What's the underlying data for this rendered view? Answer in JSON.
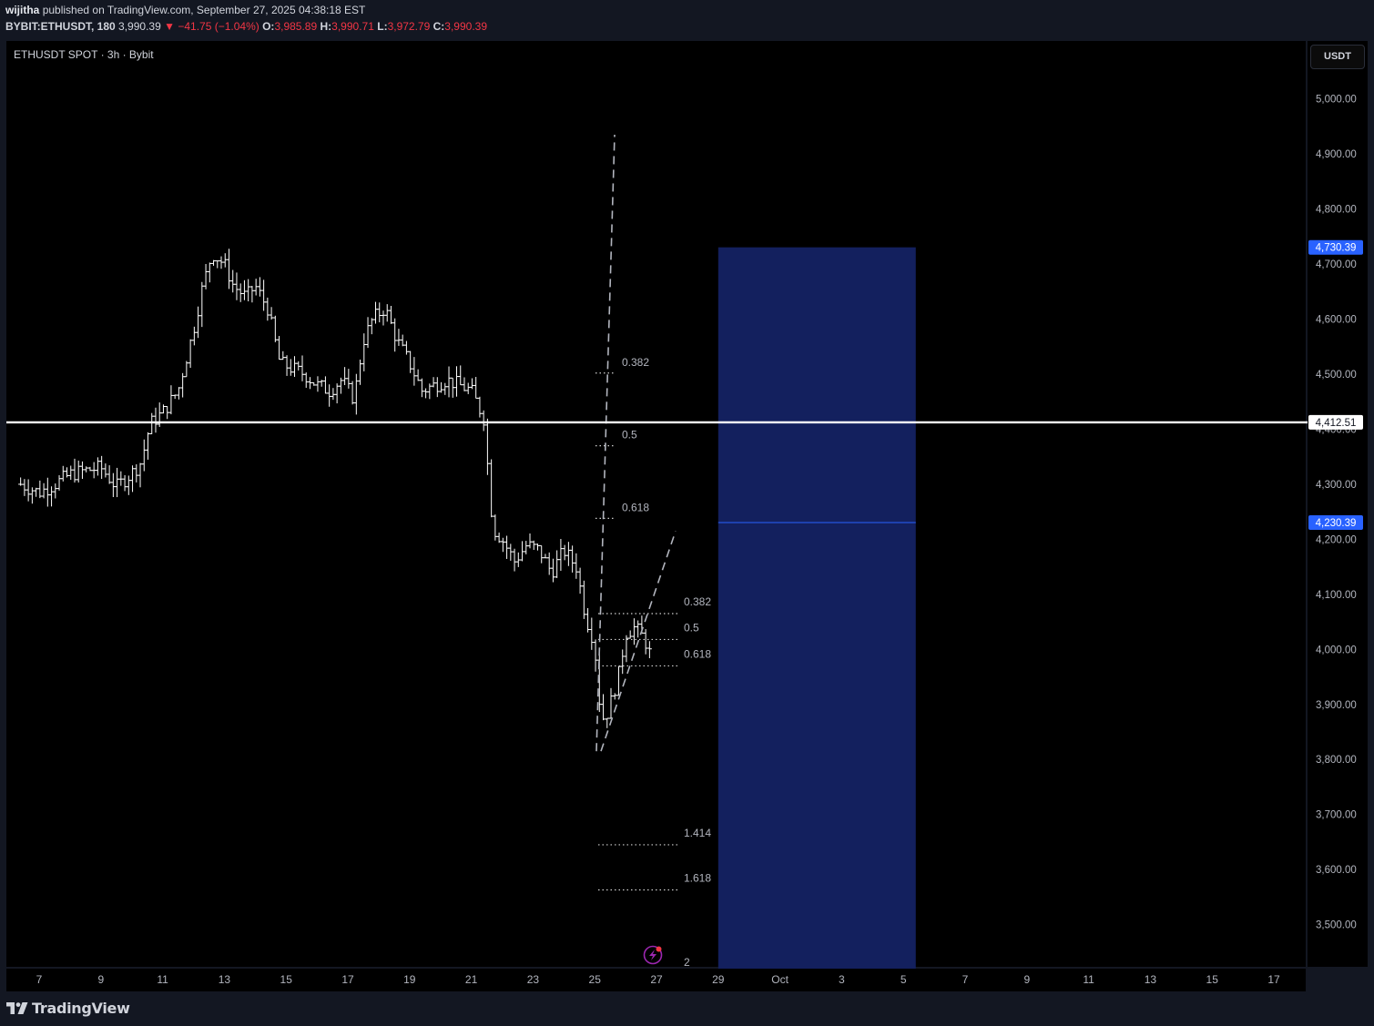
{
  "header": {
    "author": "wijitha",
    "published_text": "published on TradingView.com, September 27, 2025 04:38:18 EST",
    "symbol_line": "BYBIT:ETHUSDT, 180",
    "last_price": "3,990.39",
    "change": "−41.75 (−1.04%)",
    "open_label": "O:",
    "open": "3,985.89",
    "high_label": "H:",
    "high": "3,990.71",
    "low_label": "L:",
    "low": "3,972.79",
    "close_label": "C:",
    "close": "3,990.39"
  },
  "chart_title": "ETHUSDT SPOT · 3h · Bybit",
  "currency_button": "USDT",
  "footer": {
    "brand": "TradingView"
  },
  "colors": {
    "background": "#000000",
    "panel": "#131722",
    "candle": "#ffffff",
    "box_fill": "#13205e",
    "price_tag": "#2962ff",
    "negative": "#f23645"
  },
  "chart_data": {
    "type": "ohlc",
    "symbol": "ETHUSDT",
    "timeframe": "3h",
    "y_range": [
      3420,
      5080
    ],
    "y_ticks": [
      "5,000.00",
      "4,900.00",
      "4,800.00",
      "4,700.00",
      "4,600.00",
      "4,500.00",
      "4,400.00",
      "4,300.00",
      "4,200.00",
      "4,100.00",
      "4,000.00",
      "3,900.00",
      "3,800.00",
      "3,700.00",
      "3,600.00",
      "3,500.00"
    ],
    "x_ticks": [
      "7",
      "9",
      "11",
      "13",
      "15",
      "17",
      "19",
      "21",
      "23",
      "25",
      "27",
      "29",
      "Oct",
      "3",
      "5",
      "7",
      "9",
      "11",
      "13",
      "15",
      "17"
    ],
    "horizontal_line": {
      "price": 4412.51,
      "label": "4,412.51"
    },
    "projection_box": {
      "start_day": 29,
      "end_day": 35.4,
      "top": 4730.39,
      "mid": 4230.39,
      "top_label": "4,730.39",
      "mid_label": "4,230.39"
    },
    "fib_upper": {
      "levels": [
        "0.382",
        "0.5",
        "0.618"
      ],
      "prices": [
        4502,
        4370,
        4238
      ]
    },
    "fib_lower": {
      "levels": [
        "0.382",
        "0.5",
        "0.618",
        "1.414",
        "1.618",
        "2"
      ],
      "prices": [
        4065,
        4018,
        3970,
        3645,
        3563,
        3410
      ]
    },
    "price_path": [
      [
        6.4,
        4300
      ],
      [
        7.0,
        4285
      ],
      [
        7.5,
        4300
      ],
      [
        8.0,
        4318
      ],
      [
        8.5,
        4325
      ],
      [
        9.0,
        4330
      ],
      [
        9.5,
        4295
      ],
      [
        10.0,
        4320
      ],
      [
        10.3,
        4340
      ],
      [
        10.6,
        4410
      ],
      [
        11.0,
        4430
      ],
      [
        11.5,
        4470
      ],
      [
        12.0,
        4580
      ],
      [
        12.3,
        4660
      ],
      [
        12.6,
        4720
      ],
      [
        13.0,
        4700
      ],
      [
        13.3,
        4660
      ],
      [
        13.7,
        4640
      ],
      [
        14.0,
        4660
      ],
      [
        14.4,
        4620
      ],
      [
        14.8,
        4520
      ],
      [
        15.2,
        4510
      ],
      [
        15.6,
        4500
      ],
      [
        16.0,
        4480
      ],
      [
        16.4,
        4470
      ],
      [
        16.8,
        4490
      ],
      [
        17.2,
        4455
      ],
      [
        17.5,
        4560
      ],
      [
        17.8,
        4600
      ],
      [
        18.2,
        4620
      ],
      [
        18.6,
        4560
      ],
      [
        19.0,
        4520
      ],
      [
        19.4,
        4470
      ],
      [
        19.8,
        4480
      ],
      [
        20.2,
        4490
      ],
      [
        20.6,
        4480
      ],
      [
        21.0,
        4470
      ],
      [
        21.4,
        4420
      ],
      [
        21.7,
        4220
      ],
      [
        22.0,
        4200
      ],
      [
        22.4,
        4160
      ],
      [
        22.8,
        4190
      ],
      [
        23.2,
        4180
      ],
      [
        23.6,
        4140
      ],
      [
        24.0,
        4180
      ],
      [
        24.4,
        4150
      ],
      [
        24.7,
        4060
      ],
      [
        25.0,
        4010
      ],
      [
        25.1,
        3920
      ],
      [
        25.3,
        3870
      ],
      [
        25.5,
        3900
      ],
      [
        25.8,
        3960
      ],
      [
        26.0,
        4030
      ],
      [
        26.3,
        4040
      ],
      [
        26.6,
        4020
      ],
      [
        26.8,
        3990
      ]
    ]
  }
}
